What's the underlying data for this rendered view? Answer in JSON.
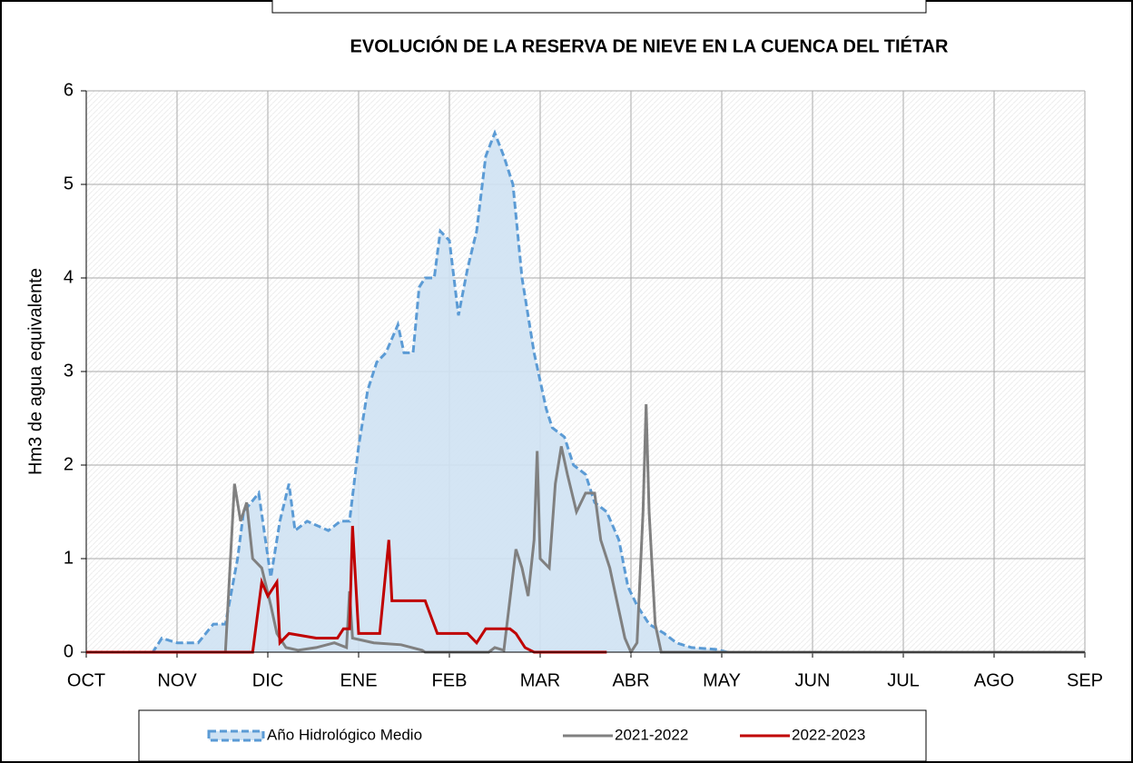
{
  "chart_data": {
    "type": "line",
    "title": "EVOLUCIÓN  DE LA RESERVA DE NIEVE  EN LA CUENCA  DEL TIÉTAR",
    "y_label": "Hm3 de agua equivalente",
    "xlim": [
      0,
      330
    ],
    "ylim": [
      0,
      6
    ],
    "xticks": [
      {
        "value": 0,
        "label": "OCT"
      },
      {
        "value": 30,
        "label": "NOV"
      },
      {
        "value": 60,
        "label": "DIC"
      },
      {
        "value": 90,
        "label": "ENE"
      },
      {
        "value": 120,
        "label": "FEB"
      },
      {
        "value": 150,
        "label": "MAR"
      },
      {
        "value": 180,
        "label": "ABR"
      },
      {
        "value": 210,
        "label": "MAY"
      },
      {
        "value": 240,
        "label": "JUN"
      },
      {
        "value": 270,
        "label": "JUL"
      },
      {
        "value": 300,
        "label": "AGO"
      },
      {
        "value": 330,
        "label": "SEP"
      }
    ],
    "yticks": [
      0,
      1,
      2,
      3,
      4,
      5,
      6
    ],
    "grid": true,
    "series": [
      {
        "name": "Año Hidrológico Medio",
        "color": "#5b9bd5",
        "style": "dashed-area",
        "x": [
          0,
          22,
          25,
          30,
          37,
          42,
          46,
          50,
          52,
          57,
          61,
          64,
          67,
          69,
          73,
          80,
          84,
          87,
          90,
          93,
          96,
          99,
          103,
          105,
          108,
          110,
          112,
          115,
          117,
          120,
          123,
          126,
          129,
          132,
          135,
          138,
          141,
          144,
          148,
          152,
          154,
          158,
          161,
          165,
          168,
          172,
          176,
          179,
          182,
          186,
          191,
          195,
          200,
          208,
          212,
          330
        ],
        "values": [
          0,
          0,
          0.15,
          0.1,
          0.1,
          0.3,
          0.3,
          1.0,
          1.5,
          1.7,
          0.8,
          1.4,
          1.8,
          1.3,
          1.4,
          1.3,
          1.4,
          1.4,
          2.2,
          2.8,
          3.1,
          3.2,
          3.5,
          3.2,
          3.2,
          3.9,
          4.0,
          4.0,
          4.5,
          4.4,
          3.6,
          4.1,
          4.5,
          5.3,
          5.55,
          5.3,
          5.0,
          4.0,
          3.2,
          2.6,
          2.4,
          2.3,
          2.0,
          1.9,
          1.6,
          1.5,
          1.2,
          0.7,
          0.5,
          0.3,
          0.2,
          0.1,
          0.05,
          0.03,
          0,
          0
        ]
      },
      {
        "name": "2021-2022",
        "color": "#808080",
        "style": "solid",
        "x": [
          0,
          46,
          49,
          51,
          53,
          55,
          58,
          61,
          63,
          66,
          70,
          76,
          82,
          86,
          87,
          88,
          95,
          104,
          111,
          112,
          133,
          135,
          138,
          142,
          144,
          146,
          148,
          149,
          150,
          153,
          155,
          157,
          159,
          162,
          165,
          168,
          170,
          173,
          175,
          178,
          180,
          182,
          184,
          185,
          186,
          188,
          190,
          330
        ],
        "values": [
          0,
          0,
          1.8,
          1.4,
          1.6,
          1.0,
          0.9,
          0.5,
          0.2,
          0.05,
          0.02,
          0.05,
          0.1,
          0.05,
          0.65,
          0.15,
          0.1,
          0.08,
          0.02,
          0,
          0,
          0.05,
          0.02,
          1.1,
          0.9,
          0.6,
          1.2,
          2.15,
          1.0,
          0.9,
          1.8,
          2.2,
          1.9,
          1.5,
          1.7,
          1.7,
          1.2,
          0.9,
          0.6,
          0.15,
          0,
          0.1,
          1.5,
          2.65,
          1.5,
          0.3,
          0,
          0
        ]
      },
      {
        "name": "2022-2023",
        "color": "#c00000",
        "style": "solid",
        "x": [
          0,
          55,
          58,
          60,
          63,
          64,
          67,
          76,
          83,
          85,
          87,
          88,
          90,
          97,
          100,
          101,
          112,
          116,
          126,
          129,
          132,
          140,
          142,
          145,
          148,
          172
        ],
        "values": [
          0,
          0,
          0.75,
          0.6,
          0.75,
          0.1,
          0.2,
          0.15,
          0.15,
          0.25,
          0.25,
          1.35,
          0.2,
          0.2,
          1.2,
          0.55,
          0.55,
          0.2,
          0.2,
          0.1,
          0.25,
          0.25,
          0.2,
          0.05,
          0,
          0
        ]
      }
    ]
  }
}
